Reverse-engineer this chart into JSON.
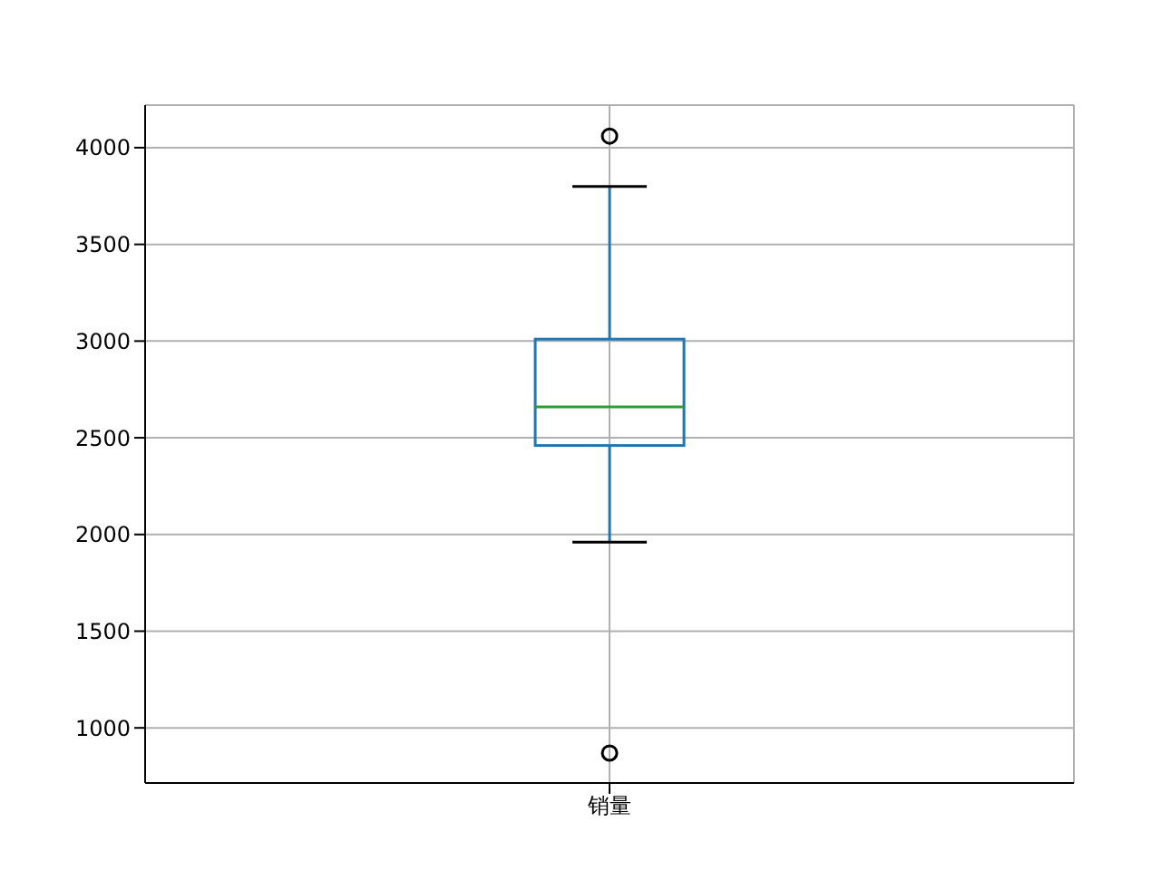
{
  "chart_data": {
    "type": "box",
    "categories": [
      "销量"
    ],
    "series": [
      {
        "color": "#1f77b4",
        "boxes": [
          {
            "low": 1960,
            "q1": 2460,
            "median": 2660,
            "q3": 3010,
            "high": 3800,
            "outliers": [
              4060,
              870
            ]
          }
        ]
      }
    ],
    "ylim": [
      715,
      4220
    ],
    "yticks": [
      1000,
      1500,
      2000,
      2500,
      3000,
      3500,
      4000
    ],
    "grid": true
  }
}
